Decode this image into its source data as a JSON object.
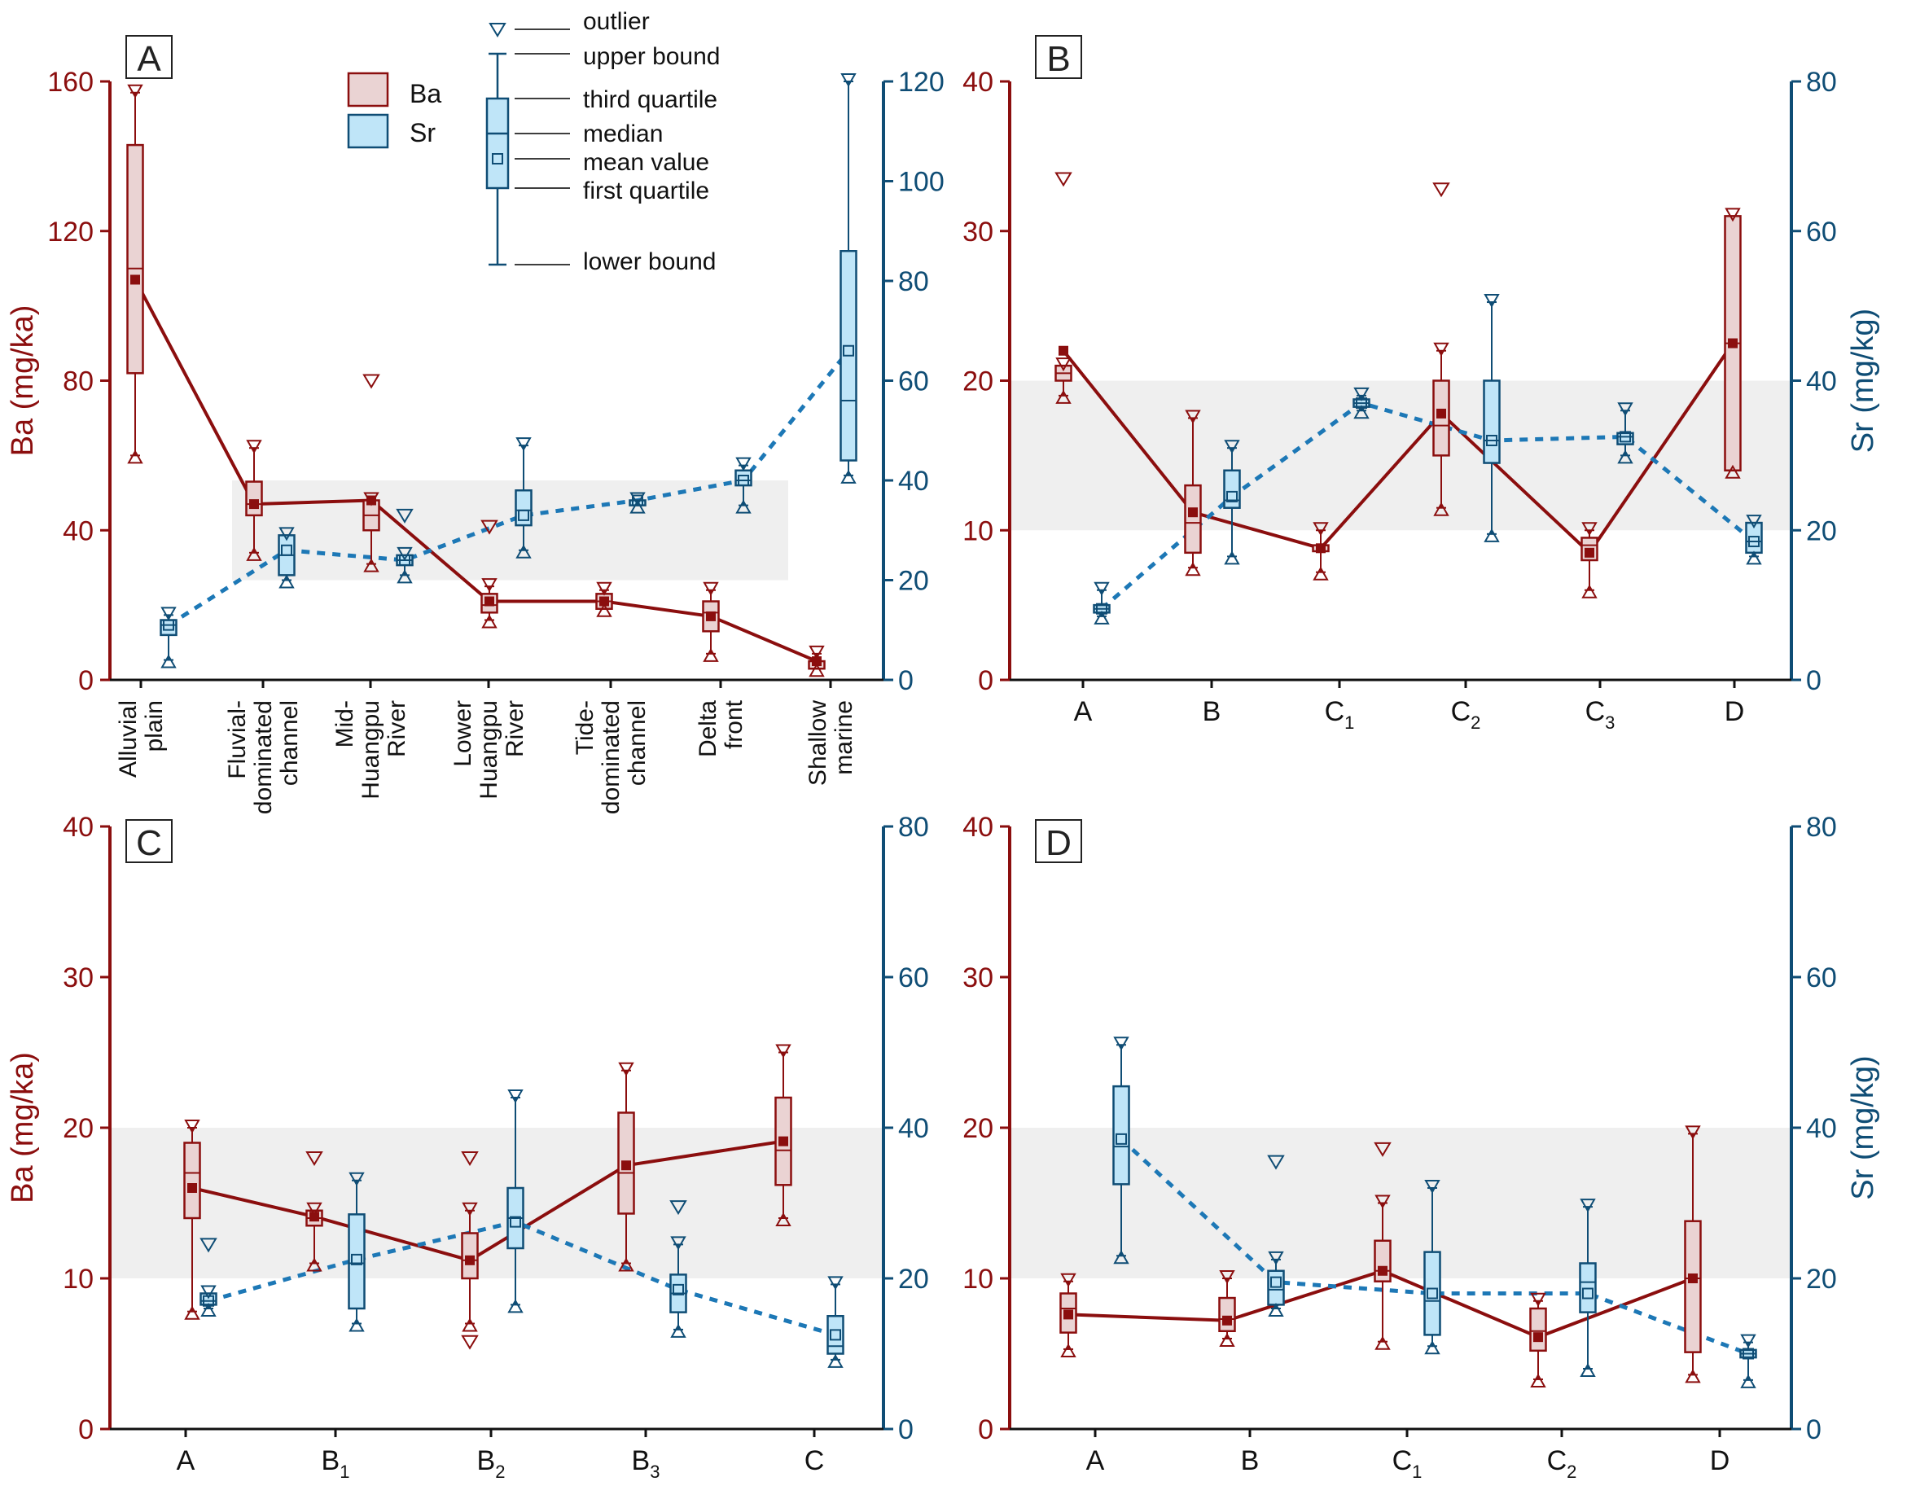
{
  "colors": {
    "ba": "#8b0e0e",
    "ba_fill": "#ead3d3",
    "sr": "#0f4d75",
    "sr_fill": "#bfe5f8",
    "sr_line": "#1d78b6",
    "band": "#efefef"
  },
  "legend": {
    "ba": "Ba",
    "sr": "Sr",
    "outlier": "outlier",
    "upper_bound": "upper bound",
    "third_quartile": "third quartile",
    "median": "median",
    "mean_value": "mean value",
    "first_quartile": "first quartile",
    "lower_bound": "lower bound"
  },
  "chart_data": [
    {
      "panel": "A",
      "type": "box",
      "ylabel_left": "Ba (mg/ka)",
      "ylabel_right": "",
      "ylim_left": [
        0,
        160
      ],
      "yticks_left": [
        "0",
        "40",
        "80",
        "120",
        "160"
      ],
      "ylim_right": [
        0,
        120
      ],
      "yticks_right": [
        "0",
        "20",
        "40",
        "60",
        "80",
        "100",
        "120"
      ],
      "band_right": [
        20,
        40
      ],
      "categories": [
        [
          "Alluvial",
          "plain"
        ],
        [
          "Fluvial-",
          "dominated",
          "channel"
        ],
        [
          "Mid-",
          "Huangpu",
          "River"
        ],
        [
          "Lower",
          "Huangpu",
          "River"
        ],
        [
          "Tide-",
          "dominated",
          "channel"
        ],
        [
          "Delta",
          "front"
        ],
        [
          "Shallow",
          "marine"
        ]
      ],
      "series": [
        {
          "name": "Ba",
          "boxes": [
            {
              "lo": 60,
              "q1": 82,
              "median": 110,
              "q3": 143,
              "hi": 157,
              "mean": 107,
              "outliers": []
            },
            {
              "lo": 34,
              "q1": 44,
              "median": 47,
              "q3": 53,
              "hi": 62,
              "mean": 47,
              "outliers": []
            },
            {
              "lo": 31,
              "q1": 40,
              "median": 44,
              "q3": 48,
              "hi": 48,
              "mean": 48,
              "outliers": [
                80
              ]
            },
            {
              "lo": 16,
              "q1": 18,
              "median": 20,
              "q3": 23,
              "hi": 25,
              "mean": 21,
              "outliers": [
                41
              ]
            },
            {
              "lo": 19,
              "q1": 19,
              "median": 21,
              "q3": 23,
              "hi": 24,
              "mean": 21,
              "outliers": []
            },
            {
              "lo": 7,
              "q1": 13,
              "median": 18,
              "q3": 21,
              "hi": 24,
              "mean": 17,
              "outliers": []
            },
            {
              "lo": 3,
              "q1": 3,
              "median": 5,
              "q3": 5,
              "hi": 7,
              "mean": 5,
              "outliers": []
            }
          ]
        },
        {
          "name": "Sr",
          "boxes": [
            {
              "lo": 4,
              "q1": 9,
              "median": 11,
              "q3": 12,
              "hi": 13,
              "mean": 11,
              "outliers": []
            },
            {
              "lo": 20,
              "q1": 21,
              "median": 25,
              "q3": 29,
              "hi": 29,
              "mean": 26,
              "outliers": []
            },
            {
              "lo": 21,
              "q1": 23,
              "median": 24,
              "q3": 25,
              "hi": 25,
              "mean": 24,
              "outliers": [
                33
              ]
            },
            {
              "lo": 26,
              "q1": 31,
              "median": 34,
              "q3": 38,
              "hi": 47,
              "mean": 33,
              "outliers": []
            },
            {
              "lo": 35,
              "q1": 35,
              "median": 36,
              "q3": 36,
              "hi": 36,
              "mean": 36,
              "outliers": []
            },
            {
              "lo": 35,
              "q1": 39,
              "median": 40,
              "q3": 42,
              "hi": 43,
              "mean": 40,
              "outliers": []
            },
            {
              "lo": 41,
              "q1": 44,
              "median": 56,
              "q3": 86,
              "hi": 120,
              "mean": 66,
              "outliers": []
            }
          ]
        }
      ]
    },
    {
      "panel": "B",
      "type": "box",
      "ylabel_left": "",
      "ylabel_right": "Sr (mg/kg)",
      "ylim_left": [
        0,
        40
      ],
      "yticks_left": [
        "0",
        "10",
        "20",
        "30",
        "40"
      ],
      "ylim_right": [
        0,
        80
      ],
      "yticks_right": [
        "0",
        "20",
        "40",
        "60",
        "80"
      ],
      "band_left": [
        10,
        20
      ],
      "categories": [
        [
          "A"
        ],
        [
          "B"
        ],
        [
          "C",
          "1"
        ],
        [
          "C",
          "2"
        ],
        [
          "C",
          "3"
        ],
        [
          "D"
        ]
      ],
      "series": [
        {
          "name": "Ba",
          "boxes": [
            {
              "lo": 19,
              "q1": 20,
              "median": 20.5,
              "q3": 21,
              "hi": 21,
              "mean": 22,
              "outliers": [
                33.5
              ]
            },
            {
              "lo": 7.5,
              "q1": 8.5,
              "median": 10.5,
              "q3": 13,
              "hi": 17.5,
              "mean": 11.2,
              "outliers": []
            },
            {
              "lo": 7.2,
              "q1": 8.6,
              "median": 9,
              "q3": 9,
              "hi": 10,
              "mean": 8.8,
              "outliers": []
            },
            {
              "lo": 11.5,
              "q1": 15,
              "median": 17,
              "q3": 20,
              "hi": 22,
              "mean": 17.8,
              "outliers": [
                32.8
              ]
            },
            {
              "lo": 6,
              "q1": 8,
              "median": 9,
              "q3": 9.5,
              "hi": 10,
              "mean": 8.5,
              "outliers": []
            },
            {
              "lo": 14,
              "q1": 14,
              "median": 22.5,
              "q3": 31,
              "hi": 31,
              "mean": 22.5,
              "outliers": []
            }
          ]
        },
        {
          "name": "Sr",
          "boxes": [
            {
              "lo": 8.5,
              "q1": 9,
              "median": 9.5,
              "q3": 10,
              "hi": 12,
              "mean": 9.5,
              "outliers": []
            },
            {
              "lo": 16.5,
              "q1": 23,
              "median": 24,
              "q3": 28,
              "hi": 31,
              "mean": 24.5,
              "outliers": []
            },
            {
              "lo": 36,
              "q1": 36.5,
              "median": 37,
              "q3": 37.5,
              "hi": 38,
              "mean": 37,
              "outliers": []
            },
            {
              "lo": 19.5,
              "q1": 29,
              "median": 32,
              "q3": 40,
              "hi": 50.5,
              "mean": 32,
              "outliers": []
            },
            {
              "lo": 30,
              "q1": 31.5,
              "median": 32.5,
              "q3": 33,
              "hi": 36,
              "mean": 32.5,
              "outliers": []
            },
            {
              "lo": 16.5,
              "q1": 17,
              "median": 18.5,
              "q3": 21,
              "hi": 21,
              "mean": 18.5,
              "outliers": []
            }
          ]
        }
      ]
    },
    {
      "panel": "C",
      "type": "box",
      "ylabel_left": "Ba (mg/ka)",
      "ylabel_right": "",
      "ylim_left": [
        0,
        40
      ],
      "yticks_left": [
        "0",
        "10",
        "20",
        "30",
        "40"
      ],
      "ylim_right": [
        0,
        80
      ],
      "yticks_right": [
        "0",
        "20",
        "40",
        "60",
        "80"
      ],
      "band_left": [
        10,
        20
      ],
      "categories": [
        [
          "A"
        ],
        [
          "B",
          "1"
        ],
        [
          "B",
          "2"
        ],
        [
          "B",
          "3"
        ],
        [
          "C"
        ]
      ],
      "series": [
        {
          "name": "Ba",
          "boxes": [
            {
              "lo": 7.8,
              "q1": 14,
              "median": 17,
              "q3": 19,
              "hi": 20,
              "mean": 16,
              "outliers": []
            },
            {
              "lo": 11,
              "q1": 13.5,
              "median": 14,
              "q3": 14.5,
              "hi": 14.5,
              "mean": 14.1,
              "outliers": [
                18
              ]
            },
            {
              "lo": 7,
              "q1": 10,
              "median": 11.2,
              "q3": 13,
              "hi": 14.5,
              "mean": 11.2,
              "outliers": [
                5.8,
                18
              ]
            },
            {
              "lo": 11,
              "q1": 14.3,
              "median": 17,
              "q3": 21,
              "hi": 23.8,
              "mean": 17.5,
              "outliers": []
            },
            {
              "lo": 14,
              "q1": 16.2,
              "median": 18.5,
              "q3": 22,
              "hi": 25,
              "mean": 19.1,
              "outliers": []
            }
          ]
        },
        {
          "name": "Sr",
          "boxes": [
            {
              "lo": 16,
              "q1": 16.5,
              "median": 17,
              "q3": 18,
              "hi": 18,
              "mean": 17,
              "outliers": [
                24.5
              ]
            },
            {
              "lo": 14,
              "q1": 16,
              "median": 22,
              "q3": 28.5,
              "hi": 33,
              "mean": 22.5,
              "outliers": []
            },
            {
              "lo": 16.5,
              "q1": 24,
              "median": 28,
              "q3": 32,
              "hi": 44,
              "mean": 27.5,
              "outliers": []
            },
            {
              "lo": 13.2,
              "q1": 15.5,
              "median": 18,
              "q3": 20.5,
              "hi": 24.5,
              "mean": 18.5,
              "outliers": [
                29.5
              ]
            },
            {
              "lo": 9.2,
              "q1": 10,
              "median": 11,
              "q3": 15,
              "hi": 19.2,
              "mean": 12.5,
              "outliers": []
            }
          ]
        }
      ]
    },
    {
      "panel": "D",
      "type": "box",
      "ylabel_left": "",
      "ylabel_right": "Sr (mg/kg)",
      "ylim_left": [
        0,
        40
      ],
      "yticks_left": [
        "0",
        "10",
        "20",
        "30",
        "40"
      ],
      "ylim_right": [
        0,
        80
      ],
      "yticks_right": [
        "0",
        "20",
        "40",
        "60",
        "80"
      ],
      "band_left": [
        10,
        20
      ],
      "categories": [
        [
          "A"
        ],
        [
          "B"
        ],
        [
          "C",
          "1"
        ],
        [
          "C",
          "2"
        ],
        [
          "D"
        ]
      ],
      "series": [
        {
          "name": "Ba",
          "boxes": [
            {
              "lo": 5.3,
              "q1": 6.4,
              "median": 8,
              "q3": 9,
              "hi": 9.8,
              "mean": 7.6,
              "outliers": []
            },
            {
              "lo": 6,
              "q1": 6.5,
              "median": 7.3,
              "q3": 8.7,
              "hi": 10,
              "mean": 7.2,
              "outliers": []
            },
            {
              "lo": 5.8,
              "q1": 9.8,
              "median": 10.5,
              "q3": 12.5,
              "hi": 15,
              "mean": 10.5,
              "outliers": [
                18.6
              ]
            },
            {
              "lo": 3.3,
              "q1": 5.2,
              "median": 6.5,
              "q3": 8,
              "hi": 8.5,
              "mean": 6.1,
              "outliers": []
            },
            {
              "lo": 3.6,
              "q1": 5.1,
              "median": 10,
              "q3": 13.8,
              "hi": 19.6,
              "mean": 10,
              "outliers": []
            }
          ]
        },
        {
          "name": "Sr",
          "boxes": [
            {
              "lo": 23,
              "q1": 32.5,
              "median": 37.5,
              "q3": 45.5,
              "hi": 51,
              "mean": 38.5,
              "outliers": []
            },
            {
              "lo": 16,
              "q1": 16.5,
              "median": 18.5,
              "q3": 21,
              "hi": 22.5,
              "mean": 19.5,
              "outliers": [
                35.5
              ]
            },
            {
              "lo": 11,
              "q1": 12.5,
              "median": 17,
              "q3": 23.5,
              "hi": 32,
              "mean": 18,
              "outliers": []
            },
            {
              "lo": 8,
              "q1": 15.5,
              "median": 19.5,
              "q3": 22,
              "hi": 29.5,
              "mean": 18,
              "outliers": []
            },
            {
              "lo": 6.5,
              "q1": 9.5,
              "median": 10,
              "q3": 10.5,
              "hi": 11.5,
              "mean": 10,
              "outliers": []
            }
          ]
        }
      ]
    }
  ]
}
